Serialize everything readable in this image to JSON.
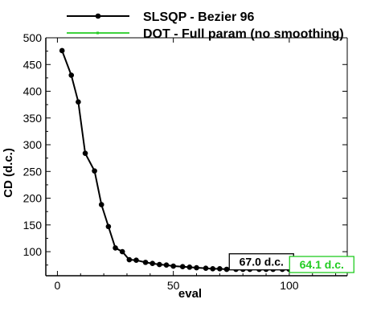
{
  "chart_data": {
    "type": "line",
    "title": "",
    "xlabel": "eval",
    "ylabel": "CD (d.c.)",
    "xlim": [
      -5,
      125
    ],
    "ylim": [
      55,
      500
    ],
    "xticks": [
      0,
      50,
      100
    ],
    "yticks": [
      100,
      150,
      200,
      250,
      300,
      350,
      400,
      450,
      500
    ],
    "legend_position": "top-right",
    "grid": false,
    "series": [
      {
        "name": "SLSQP - Bezier 96",
        "color": "#000000",
        "marker": "circle",
        "x": [
          2,
          6,
          9,
          12,
          16,
          19,
          22,
          25,
          28,
          31,
          34,
          38,
          41,
          44,
          47,
          50,
          54,
          57,
          60,
          64,
          67,
          70,
          73,
          77,
          80,
          83,
          87,
          90,
          93,
          97,
          100,
          103
        ],
        "y": [
          476,
          430,
          380,
          284,
          251,
          188,
          147,
          107,
          100,
          85,
          84,
          80,
          78,
          76,
          75,
          73,
          72,
          71,
          70,
          69,
          68,
          68,
          67,
          67,
          67,
          67,
          67,
          67,
          67,
          67,
          67,
          67
        ]
      },
      {
        "name": "DOT - Full param (no smoothing)",
        "color": "#22cc22",
        "marker": "none",
        "x": [
          103,
          106,
          110,
          114,
          118,
          122
        ],
        "y": [
          67,
          65,
          64.5,
          64.2,
          64.1,
          64.1
        ]
      }
    ],
    "annotations": [
      {
        "text": "67.0 d.c.",
        "x": 88,
        "y": 81,
        "color": "#000000"
      },
      {
        "text": "64.1 d.c.",
        "x": 114,
        "y": 76,
        "color": "#22cc22"
      }
    ]
  }
}
